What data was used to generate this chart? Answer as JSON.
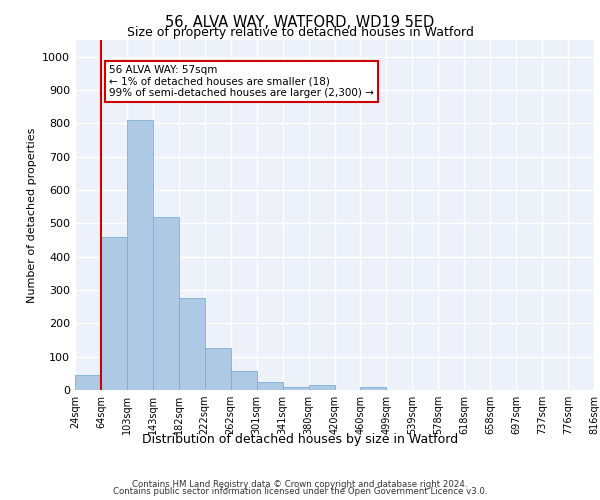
{
  "title1": "56, ALVA WAY, WATFORD, WD19 5ED",
  "title2": "Size of property relative to detached houses in Watford",
  "xlabel": "Distribution of detached houses by size in Watford",
  "ylabel": "Number of detached properties",
  "bar_values": [
    45,
    460,
    810,
    520,
    275,
    125,
    58,
    25,
    10,
    14,
    0,
    8,
    0,
    0,
    0,
    0,
    0,
    0,
    0,
    0
  ],
  "categories": [
    "24sqm",
    "64sqm",
    "103sqm",
    "143sqm",
    "182sqm",
    "222sqm",
    "262sqm",
    "301sqm",
    "341sqm",
    "380sqm",
    "420sqm",
    "460sqm",
    "499sqm",
    "539sqm",
    "578sqm",
    "618sqm",
    "658sqm",
    "697sqm",
    "737sqm",
    "776sqm",
    "816sqm"
  ],
  "bar_color": "#aec9e4",
  "bar_edge_color": "#7bafd4",
  "vline_color": "#cc0000",
  "annotation_text": "56 ALVA WAY: 57sqm\n← 1% of detached houses are smaller (18)\n99% of semi-detached houses are larger (2,300) →",
  "annotation_box_color": "#ffffff",
  "annotation_box_edge": "#cc0000",
  "ylim": [
    0,
    1050
  ],
  "yticks": [
    0,
    100,
    200,
    300,
    400,
    500,
    600,
    700,
    800,
    900,
    1000
  ],
  "footer1": "Contains HM Land Registry data © Crown copyright and database right 2024.",
  "footer2": "Contains public sector information licensed under the Open Government Licence v3.0.",
  "bg_color": "#edf2fa",
  "grid_color": "#ffffff"
}
